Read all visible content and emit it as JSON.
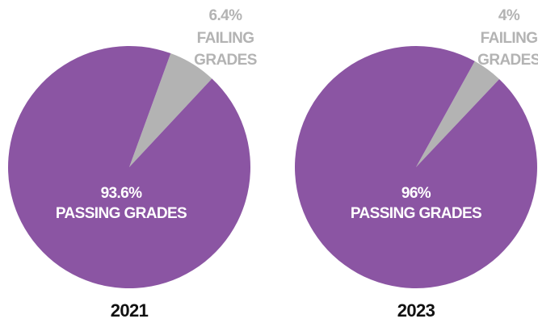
{
  "chart_data": [
    {
      "type": "pie",
      "title": "2021",
      "categories": [
        "PASSING GRADES",
        "FAILING GRADES"
      ],
      "values": [
        93.6,
        6.4
      ],
      "value_labels": [
        "93.6%",
        "6.4%"
      ],
      "colors": [
        "#8b55a3",
        "#b3b3b3"
      ]
    },
    {
      "type": "pie",
      "title": "2023",
      "categories": [
        "PASSING GRADES",
        "FAILING GRADES"
      ],
      "values": [
        96,
        4
      ],
      "value_labels": [
        "96%",
        "4%"
      ],
      "colors": [
        "#8b55a3",
        "#b3b3b3"
      ]
    }
  ]
}
